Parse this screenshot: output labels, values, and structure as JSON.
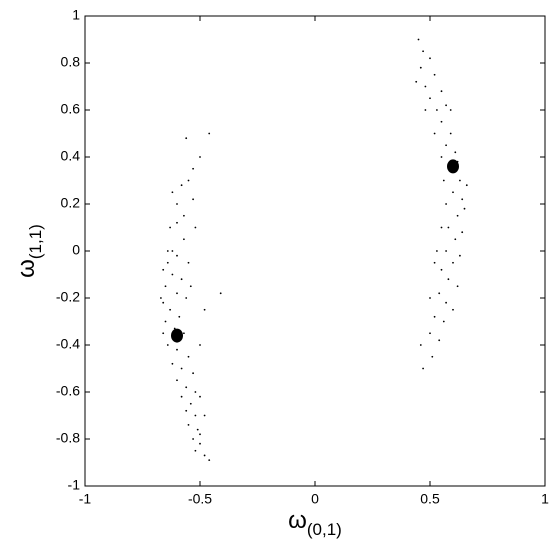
{
  "chart_data": {
    "type": "scatter",
    "xlabel": {
      "symbol": "ω",
      "subscript": "(0,1)"
    },
    "ylabel": {
      "symbol": "ω",
      "subscript": "(1,1)"
    },
    "xlim": [
      -1,
      1
    ],
    "ylim": [
      -1,
      1
    ],
    "xticks": [
      -1,
      -0.5,
      0,
      0.5,
      1
    ],
    "yticks": [
      -1,
      -0.8,
      -0.6,
      -0.4,
      -0.2,
      0,
      0.2,
      0.4,
      0.6,
      0.8,
      1
    ],
    "series": [
      {
        "color": "#000000",
        "x": [
          -0.62,
          -0.6,
          -0.58,
          -0.55,
          -0.53,
          -0.5,
          -0.56,
          -0.46,
          -0.6,
          -0.63,
          -0.57,
          -0.64,
          -0.6,
          -0.55,
          -0.66,
          -0.62,
          -0.58,
          -0.65,
          -0.6,
          -0.56,
          -0.66,
          -0.63,
          -0.59,
          -0.41,
          -0.65,
          -0.61,
          -0.57,
          -0.64,
          -0.6,
          -0.55,
          -0.62,
          -0.58,
          -0.53,
          -0.6,
          -0.56,
          -0.52,
          -0.58,
          -0.54,
          -0.5,
          -0.56,
          -0.52,
          -0.55,
          -0.51,
          -0.53,
          -0.5,
          -0.52,
          -0.48,
          -0.46,
          -0.5,
          -0.48,
          -0.62,
          -0.64,
          -0.57,
          -0.53,
          -0.52,
          -0.67,
          -0.66,
          -0.5,
          -0.48,
          -0.54,
          0.45,
          0.47,
          0.5,
          0.46,
          0.52,
          0.48,
          0.55,
          0.5,
          0.53,
          0.57,
          0.55,
          0.59,
          0.52,
          0.57,
          0.61,
          0.55,
          0.58,
          0.63,
          0.56,
          0.6,
          0.64,
          0.57,
          0.62,
          0.65,
          0.58,
          0.61,
          0.64,
          0.57,
          0.6,
          0.63,
          0.55,
          0.58,
          0.62,
          0.54,
          0.57,
          0.6,
          0.52,
          0.56,
          0.5,
          0.54,
          0.46,
          0.51,
          0.47,
          0.53,
          0.6,
          0.66,
          0.48,
          0.44,
          0.62,
          0.5,
          0.55,
          0.59,
          0.52
        ],
        "values": [
          0.25,
          0.2,
          0.28,
          0.3,
          0.35,
          0.4,
          0.48,
          0.5,
          0.12,
          0.1,
          0.05,
          0.0,
          -0.02,
          -0.05,
          -0.08,
          -0.1,
          -0.12,
          -0.15,
          -0.18,
          -0.2,
          -0.22,
          -0.25,
          -0.28,
          -0.18,
          -0.3,
          -0.33,
          -0.35,
          -0.4,
          -0.42,
          -0.45,
          -0.48,
          -0.5,
          -0.52,
          -0.55,
          -0.58,
          -0.6,
          -0.62,
          -0.65,
          -0.62,
          -0.68,
          -0.7,
          -0.74,
          -0.76,
          -0.8,
          -0.82,
          -0.85,
          -0.87,
          -0.89,
          -0.78,
          -0.7,
          0.0,
          -0.05,
          0.15,
          0.22,
          0.1,
          -0.2,
          -0.35,
          -0.4,
          -0.25,
          -0.15,
          0.9,
          0.85,
          0.82,
          0.78,
          0.75,
          0.7,
          0.68,
          0.65,
          0.6,
          0.62,
          0.55,
          0.5,
          0.5,
          0.45,
          0.42,
          0.4,
          0.35,
          0.3,
          0.3,
          0.25,
          0.22,
          0.2,
          0.15,
          0.18,
          0.1,
          0.05,
          0.08,
          0.0,
          -0.05,
          -0.02,
          -0.08,
          -0.12,
          -0.15,
          -0.18,
          -0.22,
          -0.25,
          -0.28,
          -0.3,
          -0.35,
          -0.38,
          -0.4,
          -0.45,
          -0.5,
          0.0,
          0.35,
          0.28,
          0.6,
          0.72,
          0.38,
          -0.2,
          0.1,
          0.6,
          -0.05
        ]
      },
      {
        "color": "#000000",
        "x": [
          -0.6,
          0.6
        ],
        "values": [
          -0.36,
          0.36
        ]
      }
    ]
  }
}
